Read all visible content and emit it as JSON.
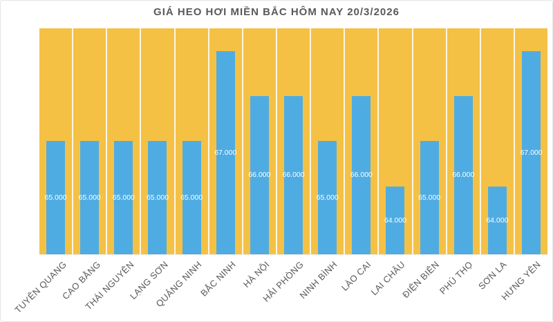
{
  "chart_data": {
    "type": "bar",
    "title": "GIÁ HEO HƠI MIỀN BẮC HÔM NAY 20/3/2026",
    "categories": [
      "TUYÊN QUANG",
      "CAO BẰNG",
      "THÁI NGUYÊN",
      "LẠNG SƠN",
      "QUẢNG NINH",
      "BẮC NINH",
      "HÀ NỘI",
      "HẢI PHÒNG",
      "NINH BÌNH",
      "LÀO CAI",
      "LAI CHÂU",
      "ĐIỆN BIÊN",
      "PHÚ THỌ",
      "SƠN LA",
      "HƯNG YÊN"
    ],
    "values": [
      65000,
      65000,
      65000,
      65000,
      65000,
      67000,
      66000,
      66000,
      65000,
      66000,
      64000,
      65000,
      66000,
      64000,
      67000
    ],
    "value_labels": [
      "65.000",
      "65.000",
      "65.000",
      "65.000",
      "65.000",
      "67.000",
      "66.000",
      "66.000",
      "65.000",
      "66.000",
      "64.000",
      "65.000",
      "66.000",
      "64.000",
      "67.000"
    ],
    "xlabel": "",
    "ylabel": "",
    "ylim": [
      62500,
      67500
    ],
    "y_axis_visible": false,
    "legend": "none",
    "grid": "white vertical separators between category columns",
    "label_position": "inside-center"
  },
  "colors": {
    "plot_background": "#F4C145",
    "bar": "#4FACE3",
    "bar_label_text": "#FFFFFF",
    "title_text": "#595959",
    "axis_label_text": "#595959",
    "separator": "#FFFFFF",
    "card_background": "#FFFFFF",
    "card_border": "#E4E4E4"
  }
}
